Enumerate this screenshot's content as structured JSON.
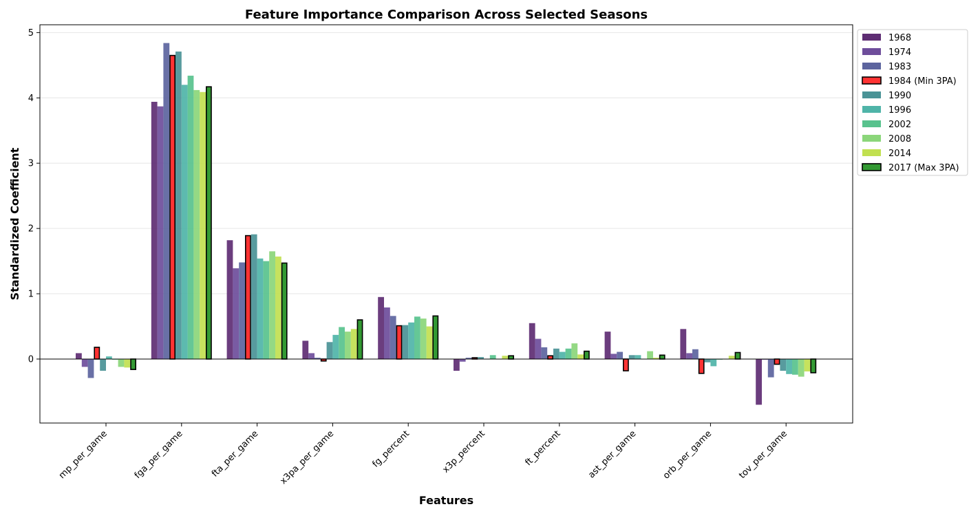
{
  "chart_data": {
    "type": "bar",
    "title": "Feature Importance Comparison Across Selected Seasons",
    "xlabel": "Features",
    "ylabel": "Standardized Coefficient",
    "ylim": [
      -0.98,
      5.12
    ],
    "yticks": [
      0,
      1,
      2,
      3,
      4,
      5
    ],
    "grid": "y-major",
    "legend_position": "outside-top-right",
    "categories": [
      "mp_per_game",
      "fga_per_game",
      "fta_per_game",
      "x3pa_per_game",
      "fg_percent",
      "x3p_percent",
      "ft_percent",
      "ast_per_game",
      "orb_per_game",
      "tov_per_game"
    ],
    "series": [
      {
        "name": "1968",
        "color": "#5e2d73",
        "highlight": false,
        "values": [
          0.09,
          3.94,
          1.82,
          0.28,
          0.95,
          -0.18,
          0.55,
          0.42,
          0.46,
          -0.7
        ]
      },
      {
        "name": "1974",
        "color": "#6e4d9b",
        "highlight": false,
        "values": [
          -0.12,
          3.87,
          1.39,
          0.09,
          0.79,
          -0.04,
          0.31,
          0.08,
          0.09,
          -0.01
        ]
      },
      {
        "name": "1983",
        "color": "#5c649e",
        "highlight": false,
        "values": [
          -0.29,
          4.84,
          1.48,
          0.02,
          0.66,
          0.02,
          0.18,
          0.11,
          0.15,
          -0.28
        ]
      },
      {
        "name": "1984 (Min 3PA)",
        "color": "#ff3333",
        "highlight": true,
        "values": [
          0.18,
          4.65,
          1.89,
          -0.03,
          0.51,
          0.02,
          0.05,
          -0.18,
          -0.22,
          -0.08
        ]
      },
      {
        "name": "1990",
        "color": "#4a9396",
        "highlight": false,
        "values": [
          -0.18,
          4.71,
          1.91,
          0.26,
          0.52,
          0.03,
          0.16,
          0.06,
          -0.05,
          -0.18
        ]
      },
      {
        "name": "1996",
        "color": "#4fb4a8",
        "highlight": false,
        "values": [
          0.04,
          4.2,
          1.54,
          0.37,
          0.56,
          0.0,
          0.11,
          0.06,
          -0.11,
          -0.23
        ]
      },
      {
        "name": "2002",
        "color": "#58c28d",
        "highlight": false,
        "values": [
          -0.01,
          4.34,
          1.5,
          0.49,
          0.65,
          0.06,
          0.16,
          0.0,
          -0.01,
          -0.24
        ]
      },
      {
        "name": "2008",
        "color": "#8bd67a",
        "highlight": false,
        "values": [
          -0.12,
          4.12,
          1.65,
          0.42,
          0.62,
          0.0,
          0.24,
          0.12,
          0.0,
          -0.27
        ]
      },
      {
        "name": "2014",
        "color": "#c1e050",
        "highlight": false,
        "values": [
          -0.13,
          4.09,
          1.57,
          0.46,
          0.5,
          0.05,
          0.07,
          0.02,
          0.05,
          -0.19
        ]
      },
      {
        "name": "2017 (Max 3PA)",
        "color": "#339933",
        "highlight": true,
        "values": [
          -0.16,
          4.17,
          1.47,
          0.6,
          0.66,
          0.05,
          0.12,
          0.06,
          0.1,
          -0.21
        ]
      }
    ]
  }
}
